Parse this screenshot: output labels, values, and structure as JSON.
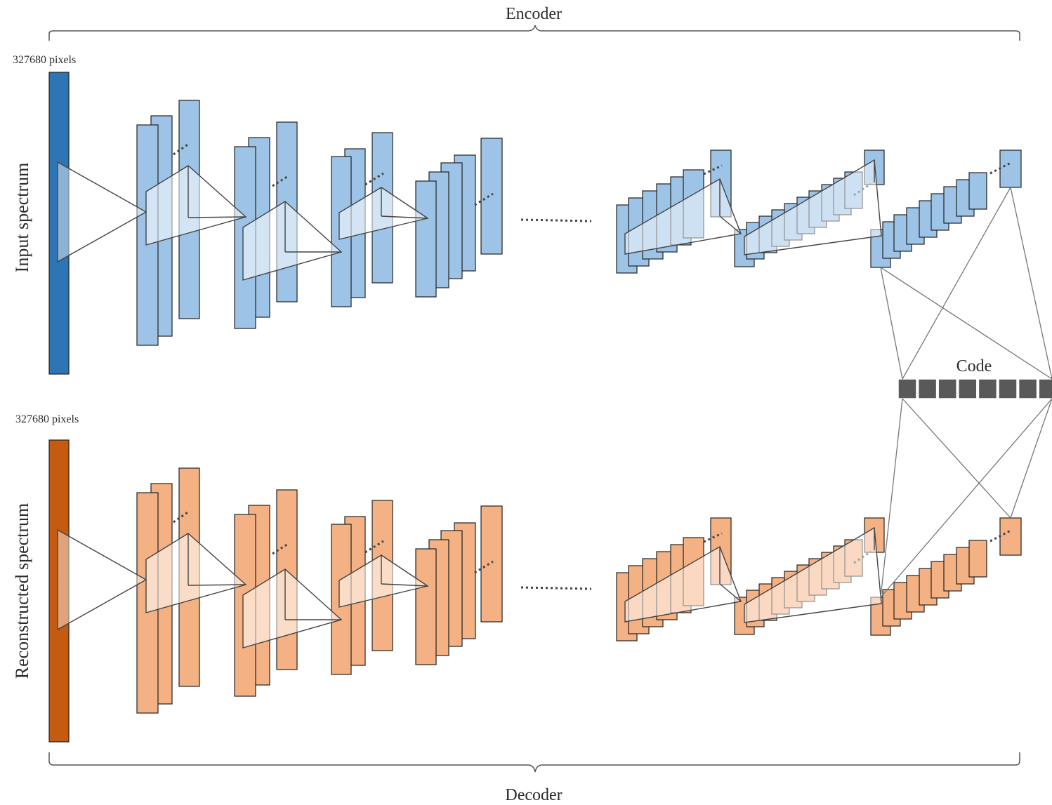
{
  "labels": {
    "encoder": "Encoder",
    "decoder": "Decoder",
    "input_pixels": "327680 pixels",
    "output_pixels": "327680 pixels",
    "input_side": "Input spectrum",
    "output_side": "Reconstructed spectrum",
    "code": "Code"
  },
  "colors": {
    "encoder_fill": "#9dc3e6",
    "encoder_bar": "#2e75b6",
    "decoder_fill": "#f4b183",
    "decoder_bar": "#c55a11",
    "code_fill": "#595959",
    "line": "#444444"
  },
  "code_cells": 8
}
